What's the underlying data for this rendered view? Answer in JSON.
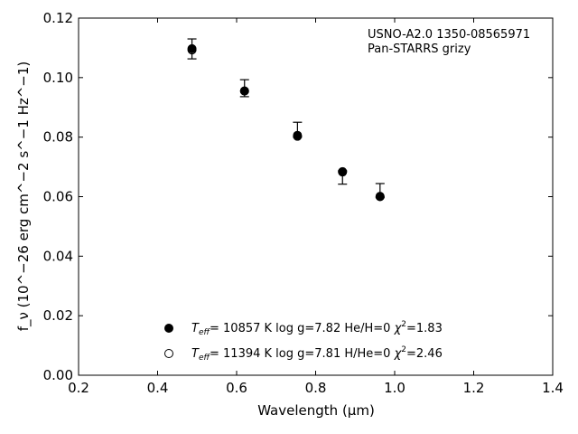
{
  "chart_data": {
    "type": "scatter",
    "title": "",
    "xlabel": "Wavelength (μm)",
    "ylabel": "f_ν (10^−26 erg cm^−2 s^−1 Hz^−1)",
    "xlim": [
      0.2,
      1.4
    ],
    "ylim": [
      0.0,
      0.12
    ],
    "xticks": [
      0.2,
      0.4,
      0.6,
      0.8,
      1.0,
      1.2,
      1.4
    ],
    "xtick_labels": [
      "0.2",
      "0.4",
      "0.6",
      "0.8",
      "1.0",
      "1.2",
      "1.4"
    ],
    "yticks": [
      0.0,
      0.02,
      0.04,
      0.06,
      0.08,
      0.1,
      0.12
    ],
    "ytick_labels": [
      "0.00",
      "0.02",
      "0.04",
      "0.06",
      "0.08",
      "0.10",
      "0.12"
    ],
    "grid": false,
    "annotation": {
      "line1": "USNO-A2.0 1350-08565971",
      "line2": "Pan-STARRS grizy"
    },
    "observed": {
      "x": [
        0.487,
        0.62,
        0.754,
        0.868,
        0.963
      ],
      "y": [
        0.1097,
        0.0963,
        0.081,
        0.0682,
        0.0602
      ],
      "yerr_low": [
        0.0034,
        0.0027,
        0.001,
        0.004,
        0.0005
      ],
      "yerr_high": [
        0.0033,
        0.003,
        0.004,
        0.0005,
        0.0042
      ]
    },
    "series": [
      {
        "name": "Teff= 10857 K  log g=7.82  He/H=0  χ2=1.83",
        "marker": "filled-circle",
        "x": [
          0.487,
          0.62,
          0.754,
          0.868,
          0.963
        ],
        "y": [
          0.1097,
          0.0955,
          0.0806,
          0.0684,
          0.0601
        ]
      },
      {
        "name": "Teff= 11394 K  log g=7.81  H/He=0  χ2=2.46",
        "marker": "open-circle",
        "x": [
          0.487,
          0.62,
          0.754,
          0.868,
          0.963
        ],
        "y": [
          0.1093,
          0.0955,
          0.0803,
          0.0683,
          0.06
        ]
      }
    ],
    "legend_placement": "lower-center",
    "legend": [
      {
        "teff_value": "= 10857 K  log g=7.82  He/H=0  ",
        "chi_value": "=1.83"
      },
      {
        "teff_value": "= 11394 K  log g=7.81  H/He=0  ",
        "chi_value": "=2.46"
      }
    ],
    "colors": {
      "marker": "#000000",
      "axes": "#000000"
    }
  }
}
